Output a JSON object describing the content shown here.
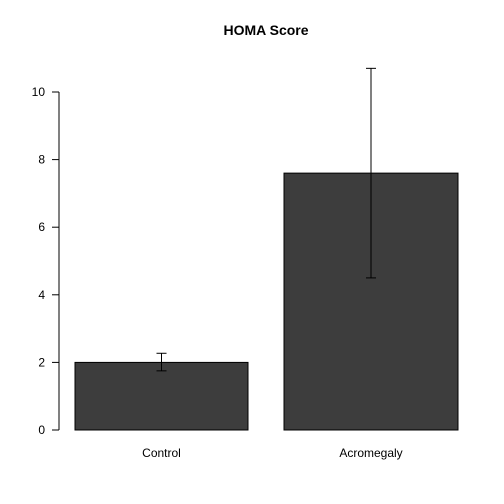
{
  "chart_data": {
    "type": "bar",
    "title": "HOMA Score",
    "xlabel": "",
    "ylabel": "",
    "categories": [
      "Control",
      "Acromegaly"
    ],
    "values": [
      2.0,
      7.6
    ],
    "error_low": [
      1.75,
      4.5
    ],
    "error_high": [
      2.27,
      10.7
    ],
    "ylim": [
      0,
      10.7
    ],
    "yticks": [
      0,
      2,
      4,
      6,
      8,
      10
    ],
    "grid": false,
    "legend": "none",
    "bar_color": "#3d3d3d",
    "bar_edge_color": "#000000"
  }
}
